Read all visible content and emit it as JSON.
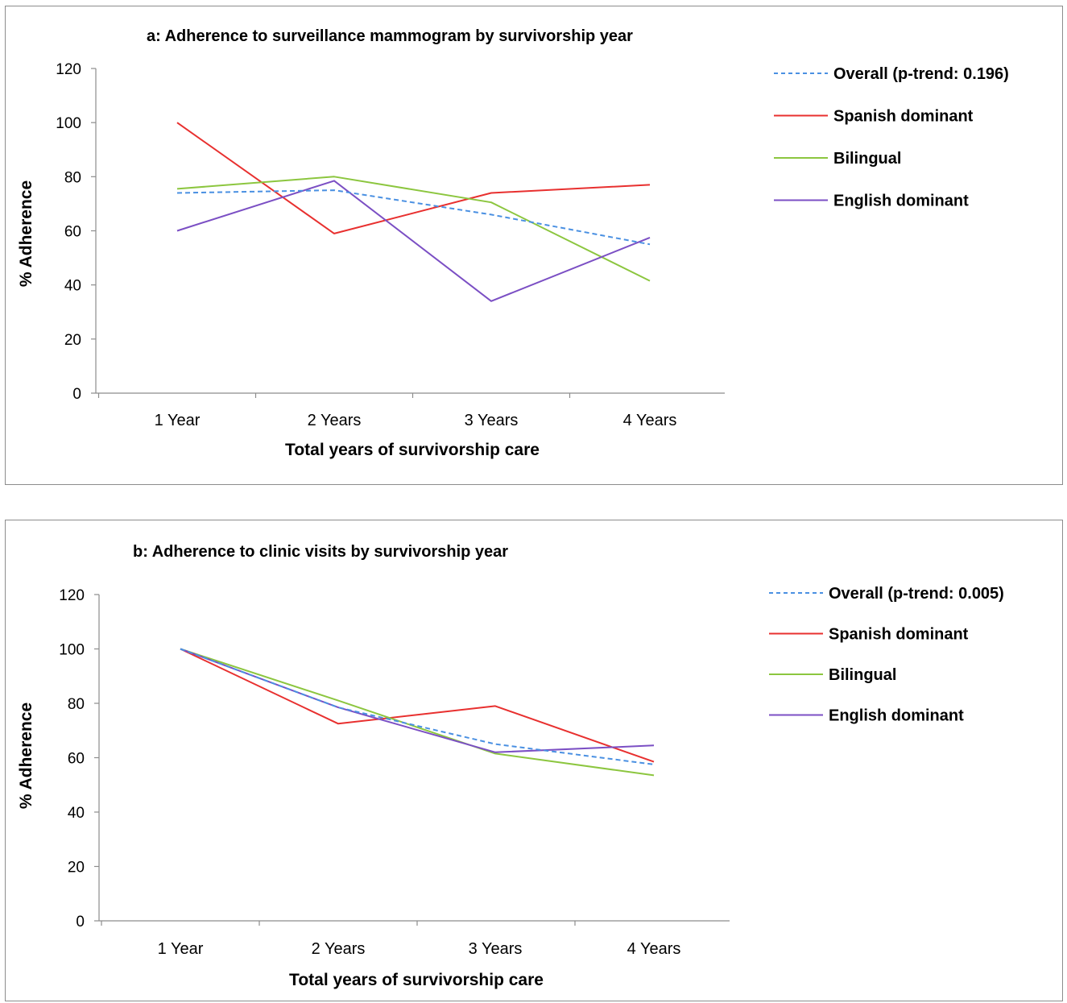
{
  "chart_data": [
    {
      "type": "line",
      "title": "a: Adherence to surveillance mammogram by survivorship year",
      "xlabel": "Total years of survivorship care",
      "ylabel": "% Adherence",
      "categories": [
        "1 Year",
        "2 Years",
        "3 Years",
        "4 Years"
      ],
      "yticks": [
        0,
        20,
        40,
        60,
        80,
        100,
        120
      ],
      "ylim": [
        0,
        120
      ],
      "grid": false,
      "legend_position": "right",
      "series": [
        {
          "name": "Overall (p-trend: 0.196)",
          "values": [
            74,
            75,
            66,
            55
          ],
          "color": "#4a90e2",
          "dashed": true
        },
        {
          "name": "Spanish dominant",
          "values": [
            100,
            59,
            74,
            77
          ],
          "color": "#e8302f",
          "dashed": false
        },
        {
          "name": "Bilingual",
          "values": [
            75.5,
            80,
            70.5,
            41.5
          ],
          "color": "#8cc63f",
          "dashed": false
        },
        {
          "name": "English dominant",
          "values": [
            60,
            78.5,
            34,
            57.5
          ],
          "color": "#7b4fc4",
          "dashed": false
        }
      ]
    },
    {
      "type": "line",
      "title": "b: Adherence to clinic visits by survivorship year",
      "xlabel": "Total years of survivorship care",
      "ylabel": "% Adherence",
      "categories": [
        "1 Year",
        "2 Years",
        "3 Years",
        "4 Years"
      ],
      "yticks": [
        0,
        20,
        40,
        60,
        80,
        100,
        120
      ],
      "ylim": [
        0,
        120
      ],
      "grid": false,
      "legend_position": "right",
      "series": [
        {
          "name": "Overall (p-trend: 0.005)",
          "values": [
            100,
            78.5,
            65,
            57.5
          ],
          "color": "#4a90e2",
          "dashed": true
        },
        {
          "name": "Spanish dominant",
          "values": [
            100,
            72.5,
            79,
            58.5
          ],
          "color": "#e8302f",
          "dashed": false
        },
        {
          "name": "Bilingual",
          "values": [
            100,
            81,
            61.5,
            53.5
          ],
          "color": "#8cc63f",
          "dashed": false
        },
        {
          "name": "English dominant",
          "values": [
            100,
            78.5,
            62,
            64.5
          ],
          "color": "#7b4fc4",
          "dashed": false
        }
      ]
    }
  ]
}
